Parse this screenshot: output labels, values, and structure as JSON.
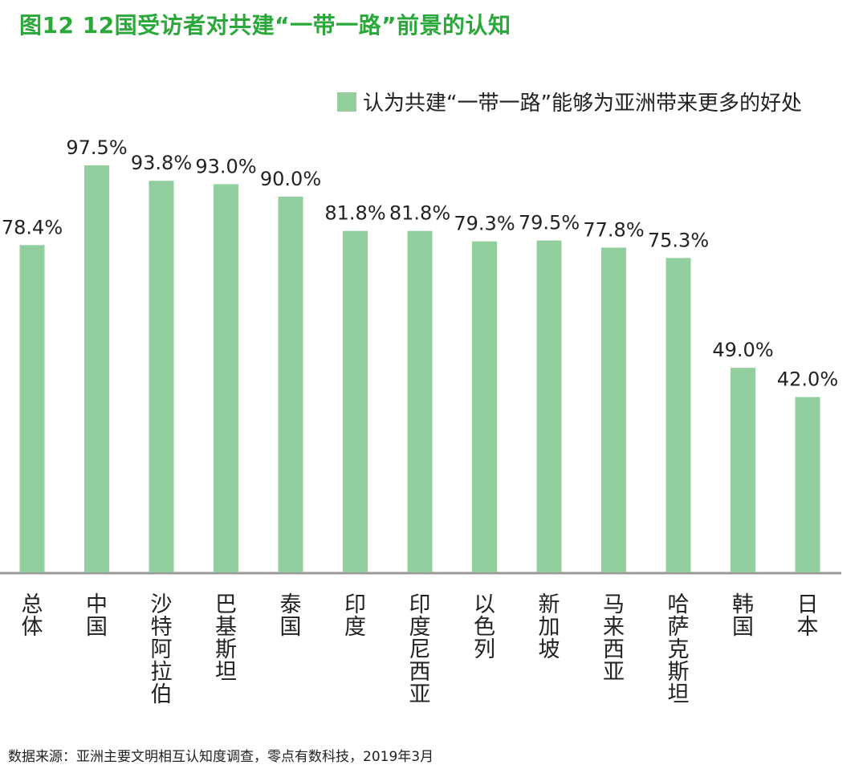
{
  "title": "图12  12国受访者对共建“一带一路”前景的认知",
  "legend": {
    "label": "认为共建“一带一路”能够为亚洲带来更多的好处",
    "color": "#93ce9f"
  },
  "source": "数据来源：亚洲主要文明相互认知度调查，零点有数科技，2019年3月",
  "colors": {
    "bar": "#93ce9f",
    "axis": "#999999",
    "title": "#2aa83a"
  },
  "chart_data": {
    "type": "bar",
    "title": "图12  12国受访者对共建“一带一路”前景的认知",
    "categories": [
      "总体",
      "中国",
      "沙特阿拉伯",
      "巴基斯坦",
      "泰国",
      "印度",
      "印度尼西亚",
      "以色列",
      "新加坡",
      "马来西亚",
      "哈萨克斯坦",
      "韩国",
      "日本"
    ],
    "series": [
      {
        "name": "认为共建“一带一路”能够为亚洲带来更多的好处",
        "values": [
          78.4,
          97.5,
          93.8,
          93.0,
          90.0,
          81.8,
          81.8,
          79.3,
          79.5,
          77.8,
          75.3,
          49.0,
          42.0
        ],
        "labels": [
          "78.4%",
          "97.5%",
          "93.8%",
          "93.0%",
          "90.0%",
          "81.8%",
          "81.8%",
          "79.3%",
          "79.5%",
          "77.8%",
          "75.3%",
          "49.0%",
          "42.0%"
        ]
      }
    ],
    "unit": "%",
    "legend_position": "top-right",
    "grid": false
  }
}
